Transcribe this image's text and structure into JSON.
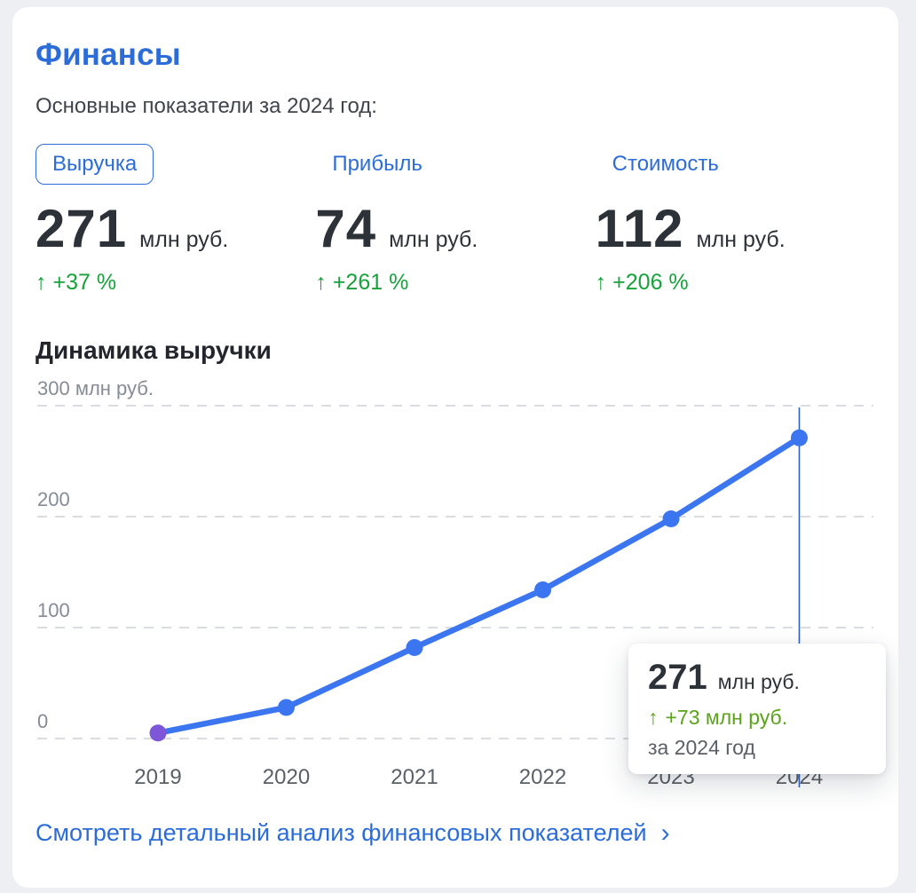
{
  "page": {
    "title": "Финансы",
    "subtitle": "Основные показатели за 2024 год:"
  },
  "icons": {
    "up_arrow": "↑",
    "chevron_right": "›"
  },
  "metrics": [
    {
      "tab": "Выручка",
      "value": "271",
      "unit": "млн руб.",
      "growth": "+37 %",
      "selected": true
    },
    {
      "tab": "Прибыль",
      "value": "74",
      "unit": "млн руб.",
      "growth": "+261 %",
      "selected": false
    },
    {
      "tab": "Стоимость",
      "value": "112",
      "unit": "млн руб.",
      "growth": "+206 %",
      "selected": false
    }
  ],
  "section": {
    "title": "Динамика выручки"
  },
  "chart_data": {
    "type": "line",
    "series_name": "Выручка",
    "x": [
      "2019",
      "2020",
      "2021",
      "2022",
      "2023",
      "2024"
    ],
    "values": [
      5,
      28,
      82,
      134,
      198,
      271
    ],
    "ylim": [
      0,
      300
    ],
    "yticks": [
      0,
      100,
      200,
      300
    ],
    "ytick_labels": [
      "0",
      "100",
      "200",
      "300 млн руб."
    ],
    "grid": "horizontal-dashed",
    "legend": "none",
    "line_color": "#3b76f0",
    "point_color": "#3b76f0",
    "first_point_color": "#7e57d9",
    "grid_color": "#d9dde2",
    "highlight_x": "2024",
    "highlight_line_color": "#2d5fbe"
  },
  "tooltip": {
    "value": "271",
    "unit": "млн руб.",
    "delta": "+73 млн руб.",
    "period": "за 2024 год"
  },
  "footer": {
    "link": "Смотреть детальный анализ финансовых показателей"
  },
  "colors": {
    "accent_blue": "#2b6cd9",
    "green": "#17a23b",
    "tooltip_green": "#5aa31a",
    "text_dark": "#2d3138",
    "text_gray": "#5a6066",
    "axis_gray": "#868c95",
    "card_bg": "#ffffff",
    "page_bg": "#edeff2"
  }
}
